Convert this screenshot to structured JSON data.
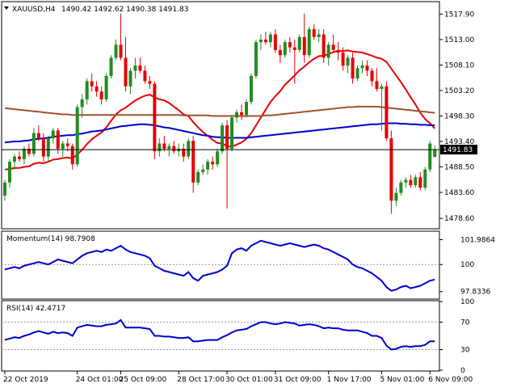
{
  "header": {
    "symbol": "XAUUSD,H4",
    "ohlc": "1490.42 1492.62 1490.38 1491.83"
  },
  "chart_data": [
    {
      "type": "candlestick",
      "title": "XAUUSD,H4",
      "current_price": 1491.83,
      "current_price_label": "1491.83",
      "ylim": [
        1476.6,
        1520.3
      ],
      "y_ticks": [
        {
          "value": 1517.9,
          "label": "1517.90"
        },
        {
          "value": 1513.0,
          "label": "1513.00"
        },
        {
          "value": 1508.1,
          "label": "1508.10"
        },
        {
          "value": 1503.2,
          "label": "1503.20"
        },
        {
          "value": 1498.3,
          "label": "1498.30"
        },
        {
          "value": 1493.4,
          "label": "1493.40"
        },
        {
          "value": 1488.5,
          "label": "1488.50"
        },
        {
          "value": 1483.6,
          "label": "1483.60"
        },
        {
          "value": 1478.6,
          "label": "1478.60"
        }
      ],
      "x_ticks": [
        {
          "index": 0,
          "label": "22 Oct 2019"
        },
        {
          "index": 15,
          "label": "24 Oct 01:00"
        },
        {
          "index": 24,
          "label": "25 Oct 09:00"
        },
        {
          "index": 36,
          "label": "28 Oct 17:00"
        },
        {
          "index": 46,
          "label": "30 Oct 01:00"
        },
        {
          "index": 56,
          "label": "31 Oct 09:00"
        },
        {
          "index": 67,
          "label": "1 Nov 17:00"
        },
        {
          "index": 78,
          "label": "5 Nov 01:00"
        },
        {
          "index": 88,
          "label": "6 Nov 09:00"
        }
      ],
      "up_color": "#228b22",
      "down_color": "#e60000",
      "candles": [
        [
          1483.0,
          1486.0,
          1482.0,
          1485.5
        ],
        [
          1485.5,
          1490.0,
          1484.5,
          1489.5
        ],
        [
          1489.5,
          1491.0,
          1488.0,
          1490.5
        ],
        [
          1490.5,
          1491.5,
          1489.5,
          1490.0
        ],
        [
          1490.0,
          1492.5,
          1489.0,
          1492.0
        ],
        [
          1492.0,
          1493.0,
          1490.5,
          1491.0
        ],
        [
          1491.0,
          1496.0,
          1490.5,
          1495.0
        ],
        [
          1495.0,
          1496.5,
          1493.5,
          1494.0
        ],
        [
          1494.0,
          1495.0,
          1489.5,
          1490.5
        ],
        [
          1490.5,
          1494.5,
          1489.5,
          1494.0
        ],
        [
          1494.0,
          1496.0,
          1493.0,
          1495.5
        ],
        [
          1495.5,
          1496.0,
          1491.0,
          1492.0
        ],
        [
          1492.0,
          1493.5,
          1490.5,
          1493.0
        ],
        [
          1493.0,
          1494.0,
          1491.5,
          1492.5
        ],
        [
          1492.5,
          1493.0,
          1488.0,
          1489.0
        ],
        [
          1489.0,
          1500.5,
          1488.5,
          1500.0
        ],
        [
          1500.0,
          1502.5,
          1498.0,
          1501.5
        ],
        [
          1501.5,
          1505.5,
          1500.5,
          1505.0
        ],
        [
          1505.0,
          1506.5,
          1503.0,
          1504.0
        ],
        [
          1504.0,
          1505.0,
          1502.0,
          1503.0
        ],
        [
          1503.0,
          1504.0,
          1500.5,
          1501.5
        ],
        [
          1501.5,
          1506.5,
          1501.0,
          1506.0
        ],
        [
          1506.0,
          1510.0,
          1505.5,
          1509.5
        ],
        [
          1509.5,
          1513.0,
          1509.0,
          1512.0
        ],
        [
          1512.0,
          1518.0,
          1509.0,
          1509.5
        ],
        [
          1509.5,
          1513.5,
          1503.0,
          1504.0
        ],
        [
          1504.0,
          1507.5,
          1502.5,
          1507.0
        ],
        [
          1507.0,
          1509.5,
          1505.5,
          1508.0
        ],
        [
          1508.0,
          1509.5,
          1506.5,
          1507.0
        ],
        [
          1507.0,
          1508.0,
          1504.5,
          1505.0
        ],
        [
          1505.0,
          1506.0,
          1503.5,
          1504.5
        ],
        [
          1504.5,
          1505.0,
          1490.0,
          1491.5
        ],
        [
          1491.5,
          1494.0,
          1490.5,
          1493.0
        ],
        [
          1493.0,
          1494.5,
          1491.5,
          1492.0
        ],
        [
          1492.0,
          1493.0,
          1490.5,
          1492.5
        ],
        [
          1492.5,
          1493.5,
          1491.0,
          1491.5
        ],
        [
          1491.5,
          1493.0,
          1490.5,
          1492.0
        ],
        [
          1492.0,
          1493.0,
          1489.5,
          1490.5
        ],
        [
          1490.5,
          1494.0,
          1490.0,
          1493.5
        ],
        [
          1493.5,
          1494.5,
          1483.5,
          1485.5
        ],
        [
          1485.5,
          1488.0,
          1485.0,
          1487.5
        ],
        [
          1487.5,
          1489.0,
          1487.0,
          1488.0
        ],
        [
          1488.0,
          1490.0,
          1487.0,
          1489.5
        ],
        [
          1489.5,
          1490.5,
          1488.0,
          1489.0
        ],
        [
          1489.0,
          1492.0,
          1488.5,
          1491.5
        ],
        [
          1491.5,
          1497.0,
          1491.0,
          1496.5
        ],
        [
          1496.5,
          1497.5,
          1480.5,
          1492.0
        ],
        [
          1492.0,
          1498.5,
          1491.5,
          1498.0
        ],
        [
          1498.0,
          1499.5,
          1497.0,
          1499.0
        ],
        [
          1499.0,
          1500.5,
          1497.5,
          1498.5
        ],
        [
          1498.5,
          1501.5,
          1498.0,
          1501.0
        ],
        [
          1501.0,
          1506.5,
          1500.5,
          1506.0
        ],
        [
          1506.0,
          1513.0,
          1505.5,
          1512.5
        ],
        [
          1512.5,
          1514.0,
          1511.0,
          1513.0
        ],
        [
          1513.0,
          1514.5,
          1512.0,
          1512.5
        ],
        [
          1512.5,
          1514.5,
          1511.5,
          1514.0
        ],
        [
          1514.0,
          1515.0,
          1510.5,
          1511.0
        ],
        [
          1511.0,
          1512.0,
          1508.5,
          1510.0
        ],
        [
          1510.0,
          1513.0,
          1509.5,
          1512.5
        ],
        [
          1512.5,
          1513.5,
          1510.5,
          1511.5
        ],
        [
          1511.5,
          1513.0,
          1504.5,
          1511.0
        ],
        [
          1511.0,
          1514.0,
          1510.5,
          1513.5
        ],
        [
          1513.5,
          1518.0,
          1508.5,
          1510.0
        ],
        [
          1510.0,
          1515.5,
          1509.5,
          1515.0
        ],
        [
          1515.0,
          1516.0,
          1513.0,
          1513.5
        ],
        [
          1513.5,
          1515.0,
          1512.5,
          1514.0
        ],
        [
          1514.0,
          1515.0,
          1508.5,
          1509.5
        ],
        [
          1509.5,
          1512.5,
          1508.0,
          1512.0
        ],
        [
          1512.0,
          1514.0,
          1510.5,
          1511.0
        ],
        [
          1511.0,
          1512.5,
          1509.0,
          1510.5
        ],
        [
          1510.5,
          1511.5,
          1507.0,
          1508.0
        ],
        [
          1508.0,
          1510.0,
          1506.5,
          1509.5
        ],
        [
          1509.5,
          1510.5,
          1504.5,
          1505.5
        ],
        [
          1505.5,
          1508.0,
          1505.0,
          1507.5
        ],
        [
          1507.5,
          1509.0,
          1506.5,
          1508.0
        ],
        [
          1508.0,
          1509.0,
          1506.0,
          1507.0
        ],
        [
          1507.0,
          1507.5,
          1504.0,
          1505.0
        ],
        [
          1505.0,
          1507.5,
          1503.0,
          1503.5
        ],
        [
          1503.5,
          1504.5,
          1495.5,
          1504.0
        ],
        [
          1504.0,
          1505.0,
          1493.5,
          1494.0
        ],
        [
          1494.0,
          1495.5,
          1479.5,
          1482.0
        ],
        [
          1482.0,
          1484.5,
          1481.0,
          1483.5
        ],
        [
          1483.5,
          1486.0,
          1483.0,
          1485.5
        ],
        [
          1485.5,
          1486.5,
          1484.5,
          1486.0
        ],
        [
          1486.0,
          1487.0,
          1484.5,
          1485.0
        ],
        [
          1485.0,
          1487.0,
          1484.5,
          1486.5
        ],
        [
          1486.5,
          1487.5,
          1484.0,
          1484.5
        ],
        [
          1484.5,
          1488.5,
          1484.0,
          1488.0
        ],
        [
          1488.0,
          1493.5,
          1487.5,
          1493.0
        ],
        [
          1490.4,
          1492.6,
          1490.4,
          1491.8
        ]
      ],
      "overlays": [
        {
          "color": "#e60000",
          "values": [
            1488.0,
            1488.1,
            1488.3,
            1488.3,
            1488.5,
            1488.6,
            1489.1,
            1489.3,
            1489.2,
            1489.5,
            1489.9,
            1490.0,
            1490.2,
            1490.3,
            1490.1,
            1490.9,
            1491.8,
            1492.9,
            1493.8,
            1494.5,
            1495.1,
            1496.1,
            1497.4,
            1498.6,
            1499.4,
            1499.9,
            1500.6,
            1501.3,
            1501.8,
            1502.2,
            1502.4,
            1501.9,
            1501.5,
            1501.3,
            1500.8,
            1500.1,
            1499.4,
            1498.6,
            1498.3,
            1497.1,
            1496.1,
            1495.2,
            1494.5,
            1493.7,
            1493.1,
            1493.0,
            1492.5,
            1492.4,
            1492.8,
            1493.2,
            1493.9,
            1495.0,
            1496.5,
            1498.0,
            1499.5,
            1501.0,
            1502.1,
            1503.1,
            1504.3,
            1505.2,
            1506.1,
            1507.1,
            1507.8,
            1508.6,
            1509.3,
            1509.8,
            1509.9,
            1510.2,
            1510.6,
            1510.8,
            1510.8,
            1510.9,
            1510.7,
            1510.6,
            1510.5,
            1510.2,
            1509.9,
            1509.5,
            1509.3,
            1508.7,
            1507.4,
            1506.1,
            1504.8,
            1503.4,
            1501.9,
            1500.5,
            1498.9,
            1497.7,
            1496.9,
            1495.9
          ]
        },
        {
          "color": "#0000cc",
          "values": [
            1493.2,
            1493.3,
            1493.4,
            1493.4,
            1493.5,
            1493.6,
            1493.8,
            1493.9,
            1494.0,
            1494.1,
            1494.3,
            1494.4,
            1494.5,
            1494.6,
            1494.6,
            1494.8,
            1494.9,
            1495.1,
            1495.3,
            1495.4,
            1495.5,
            1495.7,
            1495.9,
            1496.1,
            1496.3,
            1496.4,
            1496.5,
            1496.6,
            1496.7,
            1496.7,
            1496.6,
            1496.5,
            1496.3,
            1496.1,
            1496.0,
            1495.8,
            1495.6,
            1495.4,
            1495.2,
            1495.0,
            1494.8,
            1494.6,
            1494.5,
            1494.3,
            1494.2,
            1494.2,
            1494.1,
            1494.1,
            1494.1,
            1494.1,
            1494.1,
            1494.2,
            1494.3,
            1494.4,
            1494.5,
            1494.6,
            1494.7,
            1494.8,
            1494.9,
            1495.0,
            1495.1,
            1495.2,
            1495.3,
            1495.4,
            1495.5,
            1495.6,
            1495.7,
            1495.8,
            1495.9,
            1496.0,
            1496.1,
            1496.2,
            1496.3,
            1496.4,
            1496.5,
            1496.6,
            1496.7,
            1496.7,
            1496.8,
            1496.9,
            1496.9,
            1496.9,
            1496.8,
            1496.8,
            1496.7,
            1496.7,
            1496.6,
            1496.6,
            1496.5,
            1496.5
          ]
        },
        {
          "color": "#a0522d",
          "values": [
            1499.8,
            1499.7,
            1499.6,
            1499.5,
            1499.4,
            1499.3,
            1499.2,
            1499.1,
            1499.0,
            1498.9,
            1498.8,
            1498.7,
            1498.6,
            1498.6,
            1498.5,
            1498.5,
            1498.5,
            1498.5,
            1498.5,
            1498.5,
            1498.5,
            1498.5,
            1498.5,
            1498.5,
            1498.5,
            1498.5,
            1498.5,
            1498.5,
            1498.5,
            1498.5,
            1498.5,
            1498.5,
            1498.5,
            1498.5,
            1498.5,
            1498.5,
            1498.5,
            1498.4,
            1498.4,
            1498.4,
            1498.4,
            1498.4,
            1498.4,
            1498.3,
            1498.3,
            1498.3,
            1498.3,
            1498.3,
            1498.3,
            1498.3,
            1498.3,
            1498.3,
            1498.3,
            1498.3,
            1498.4,
            1498.4,
            1498.5,
            1498.6,
            1498.7,
            1498.8,
            1498.9,
            1499.0,
            1499.1,
            1499.2,
            1499.3,
            1499.4,
            1499.5,
            1499.6,
            1499.7,
            1499.8,
            1499.9,
            1500.0,
            1500.0,
            1500.1,
            1500.1,
            1500.1,
            1500.1,
            1500.1,
            1500.0,
            1499.9,
            1499.8,
            1499.7,
            1499.6,
            1499.5,
            1499.4,
            1499.3,
            1499.2,
            1499.1,
            1499.0,
            1498.9
          ]
        }
      ]
    },
    {
      "type": "line",
      "title": "Momentum(14) 98.7908",
      "ylim": [
        97.3,
        102.6
      ],
      "level": 100,
      "color": "#0000cc",
      "y_ticks": [
        {
          "value": 101.9864,
          "label": "101.9864"
        },
        {
          "value": 100,
          "label": "100"
        },
        {
          "value": 97.8336,
          "label": "97.8336"
        }
      ],
      "values": [
        99.6,
        99.7,
        99.8,
        99.7,
        99.9,
        100.0,
        100.1,
        100.2,
        100.1,
        100.0,
        100.2,
        100.4,
        100.3,
        100.2,
        100.1,
        100.4,
        100.7,
        100.9,
        101.0,
        101.1,
        101.0,
        101.2,
        101.1,
        101.3,
        101.5,
        101.2,
        101.0,
        100.9,
        100.8,
        100.7,
        100.5,
        99.9,
        99.7,
        99.5,
        99.4,
        99.3,
        99.2,
        99.1,
        99.4,
        98.9,
        98.7,
        99.1,
        99.2,
        99.3,
        99.4,
        99.6,
        99.9,
        100.9,
        101.2,
        101.3,
        101.1,
        101.5,
        101.7,
        101.9,
        101.8,
        101.7,
        101.6,
        101.5,
        101.6,
        101.7,
        101.6,
        101.5,
        101.4,
        101.5,
        101.6,
        101.5,
        101.3,
        101.2,
        101.0,
        100.8,
        100.6,
        100.4,
        100.0,
        99.8,
        99.7,
        99.5,
        99.3,
        99.0,
        98.7,
        98.2,
        97.9,
        98.0,
        98.2,
        98.3,
        98.1,
        98.2,
        98.3,
        98.5,
        98.7,
        98.8
      ]
    },
    {
      "type": "line",
      "title": "RSI(14) 42.4717",
      "ylim": [
        0,
        100
      ],
      "levels": [
        70,
        30
      ],
      "color": "#0000cc",
      "y_ticks": [
        {
          "value": 100,
          "label": "100"
        },
        {
          "value": 70,
          "label": "70"
        },
        {
          "value": 30,
          "label": "30"
        },
        {
          "value": 0,
          "label": "0"
        }
      ],
      "values": [
        44,
        46,
        48,
        47,
        50,
        52,
        55,
        57,
        55,
        53,
        56,
        54,
        55,
        54,
        50,
        62,
        64,
        66,
        65,
        64,
        64,
        66,
        67,
        68,
        73,
        62,
        62,
        62,
        62,
        61,
        60,
        50,
        50,
        49,
        49,
        48,
        47,
        47,
        48,
        42,
        42,
        43,
        44,
        44,
        44,
        48,
        51,
        55,
        58,
        59,
        60,
        64,
        67,
        70,
        70,
        68,
        67,
        68,
        70,
        69,
        68,
        65,
        66,
        67,
        66,
        64,
        61,
        62,
        61,
        61,
        59,
        58,
        58,
        58,
        56,
        54,
        50,
        50,
        47,
        36,
        30,
        31,
        34,
        35,
        34,
        35,
        35,
        37,
        42,
        42
      ]
    }
  ]
}
